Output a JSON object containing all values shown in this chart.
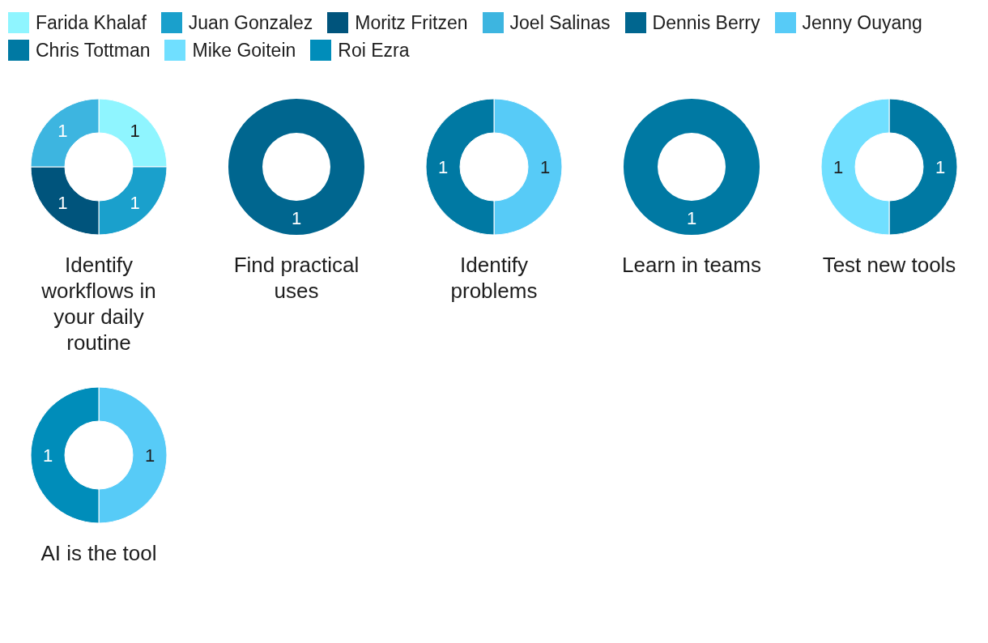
{
  "chart_data": {
    "type": "donut",
    "categories": [
      "Farida Khalaf",
      "Juan Gonzalez",
      "Moritz Fritzen",
      "Joel Salinas",
      "Dennis Berry",
      "Jenny Ouyang",
      "Chris Tottman",
      "Mike Goitein",
      "Roi Ezra"
    ],
    "colors": [
      "#8ff5ff",
      "#1aa0cc",
      "#00547c",
      "#3db5e0",
      "#00668f",
      "#57cbf7",
      "#0079a3",
      "#70dfff",
      "#008dba"
    ],
    "series": [
      {
        "name": "Identify workflows in your daily routine",
        "values": [
          1,
          1,
          1,
          1,
          null,
          null,
          null,
          null,
          null
        ]
      },
      {
        "name": "Find practical uses",
        "values": [
          null,
          null,
          null,
          null,
          1,
          null,
          null,
          null,
          null
        ]
      },
      {
        "name": "Identify problems",
        "values": [
          null,
          null,
          null,
          null,
          null,
          1,
          1,
          null,
          null
        ]
      },
      {
        "name": "Learn in teams",
        "values": [
          null,
          null,
          null,
          null,
          null,
          null,
          1,
          null,
          null
        ]
      },
      {
        "name": "Test new tools",
        "values": [
          null,
          null,
          null,
          null,
          null,
          null,
          1,
          1,
          null
        ]
      },
      {
        "name": "AI is the tool",
        "values": [
          null,
          null,
          null,
          null,
          null,
          1,
          null,
          null,
          1
        ]
      }
    ],
    "data_labels": true,
    "legend": "top"
  }
}
